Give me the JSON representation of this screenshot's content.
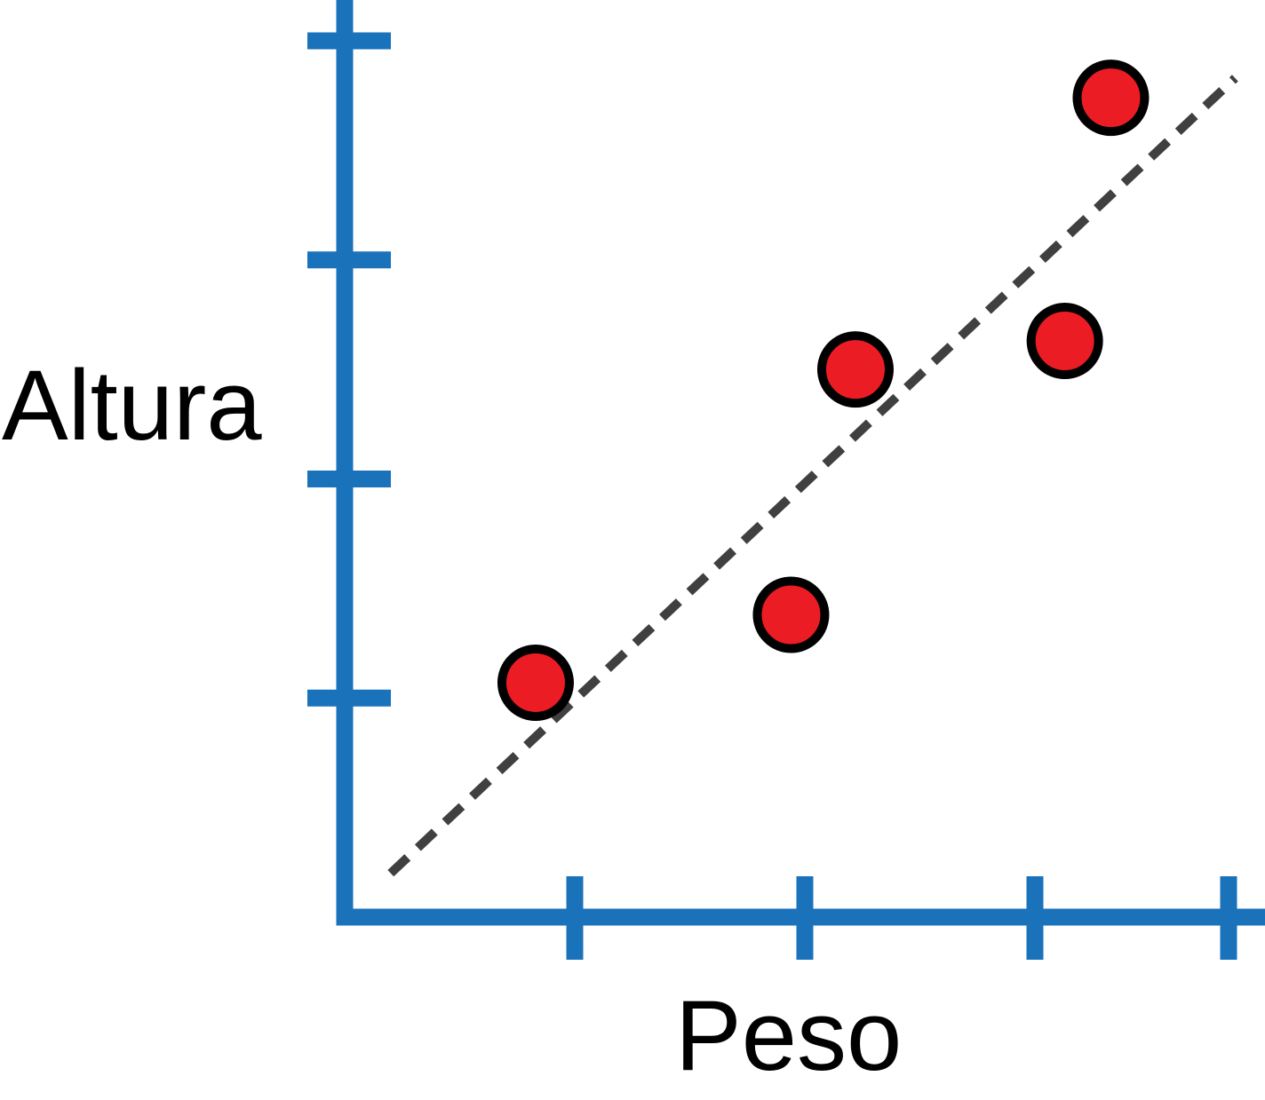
{
  "chart_data": {
    "type": "scatter",
    "title": "",
    "xlabel": "Peso",
    "ylabel": "Altura",
    "xlim": [
      0,
      4
    ],
    "ylim": [
      0,
      4
    ],
    "xticks": [
      1,
      2,
      3,
      4
    ],
    "yticks": [
      1,
      2,
      3,
      4
    ],
    "tick_labels_shown": false,
    "grid": false,
    "legend": "none",
    "series": [
      {
        "name": "points",
        "points": [
          {
            "x": 0.83,
            "y": 1.07
          },
          {
            "x": 1.94,
            "y": 1.38
          },
          {
            "x": 2.22,
            "y": 2.5
          },
          {
            "x": 3.13,
            "y": 2.63
          },
          {
            "x": 3.33,
            "y": 3.74
          }
        ]
      }
    ],
    "trendline": {
      "style": "dashed",
      "from": {
        "x": 0.2,
        "y": 0.2
      },
      "to": {
        "x": 3.87,
        "y": 3.83
      }
    }
  },
  "colors": {
    "axis": "#1a72bb",
    "point_fill": "#ec1c24",
    "point_stroke": "#000000",
    "trendline": "#404041"
  }
}
